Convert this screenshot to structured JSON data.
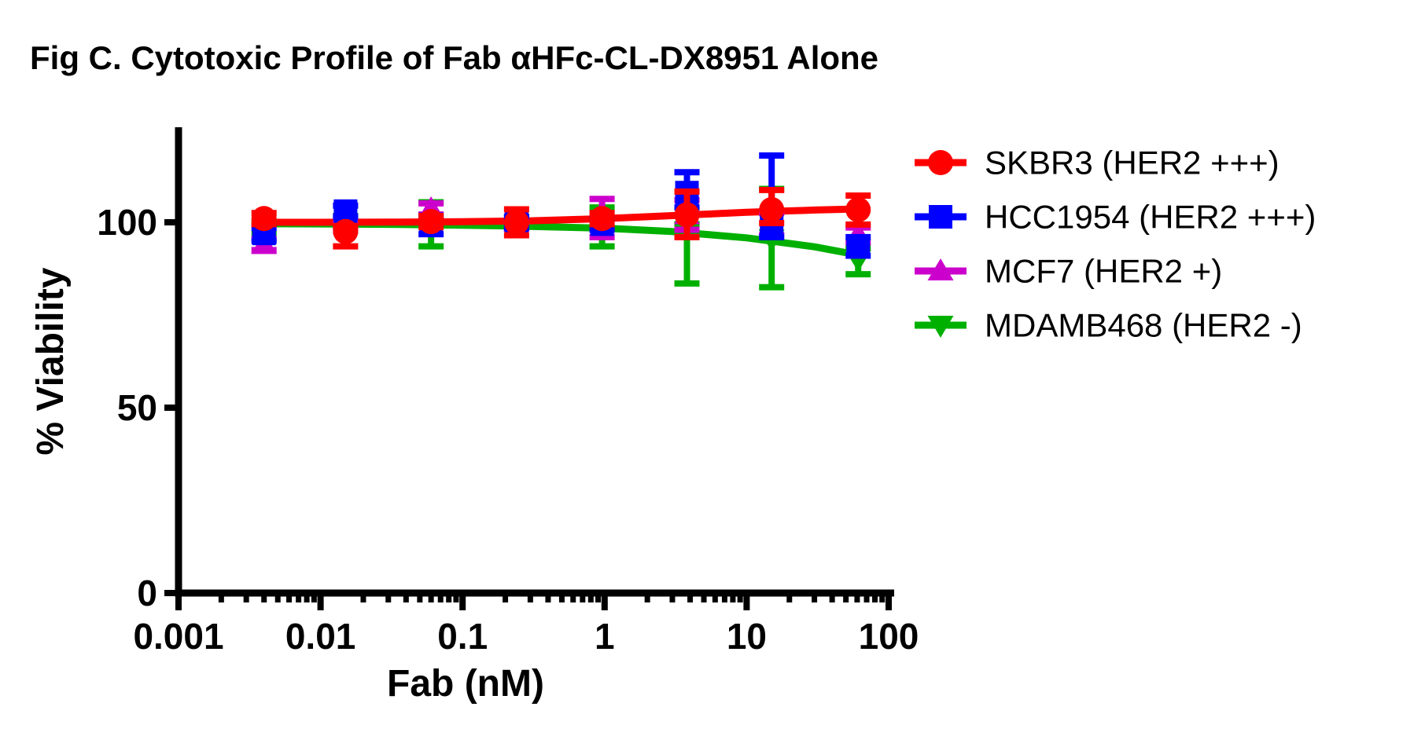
{
  "title": "Fig C. Cytotoxic Profile of Fab αHFc-CL-DX8951 Alone",
  "chart_data": {
    "type": "scatter",
    "x_scale": "log",
    "xlabel": "Fab (nM)",
    "ylabel": "% Viability",
    "xlim": [
      0.001,
      100
    ],
    "ylim": [
      0,
      125
    ],
    "grid": false,
    "legend_position": "right",
    "x_ticks": {
      "values": [
        0.001,
        0.01,
        0.1,
        1,
        10,
        100
      ],
      "labels": [
        "0.001",
        "0.01",
        "0.1",
        "1",
        "10",
        "100"
      ]
    },
    "y_ticks": {
      "values": [
        0,
        50,
        100
      ],
      "labels": [
        "0",
        "50",
        "100"
      ]
    },
    "x": [
      0.004,
      0.015,
      0.06,
      0.24,
      0.96,
      3.8,
      15,
      61
    ],
    "series": [
      {
        "name": "SKBR3 (HER2 +++)",
        "slug": "skbr3",
        "color": "#FF0000",
        "marker": "circle",
        "values": [
          101,
          97.5,
          100.2,
          100,
          101,
          102,
          103.4,
          103.4
        ],
        "err_plus": [
          1.5,
          1.5,
          1.5,
          3.5,
          1.5,
          6.3,
          5.3,
          3.8
        ],
        "err_minus": [
          1.5,
          4,
          1.5,
          3.5,
          1.5,
          6,
          3.6,
          4
        ],
        "fit_curve": {
          "x": [
            0.004,
            0.01,
            0.03,
            0.1,
            0.3,
            1,
            3,
            10,
            30,
            61
          ],
          "y": [
            100.0,
            100.0,
            100.05,
            100.15,
            100.4,
            101.0,
            101.8,
            102.7,
            103.3,
            103.6
          ]
        }
      },
      {
        "name": "HCC1954 (HER2 +++)",
        "slug": "hcc1954",
        "color": "#0000FF",
        "marker": "square",
        "values": [
          97,
          103,
          99.3,
          100,
          99.5,
          108,
          99,
          93.5
        ],
        "err_plus": [
          1.5,
          1.5,
          2.5,
          1.5,
          1.5,
          5.5,
          19,
          2.5
        ],
        "err_minus": [
          2,
          1.5,
          2.5,
          1.5,
          1.5,
          4,
          3,
          2.5
        ],
        "fit_curve": null
      },
      {
        "name": "MCF7 (HER2 +)",
        "slug": "mcf7",
        "color": "#CC00CC",
        "marker": "triangle-up",
        "values": [
          94,
          99.5,
          103.6,
          100,
          101,
          102,
          99.5,
          96.6
        ],
        "err_plus": [
          1.5,
          1,
          1.5,
          1,
          5.3,
          4,
          3,
          2
        ],
        "err_minus": [
          1.5,
          1,
          1.5,
          1,
          5,
          4,
          3,
          2
        ],
        "fit_curve": null
      },
      {
        "name": "MDAMB468 (HER2 -)",
        "slug": "mdamb468",
        "color": "#00B000",
        "marker": "triangle-down",
        "values": [
          98.5,
          100,
          99.5,
          99.5,
          98.5,
          97.5,
          95.5,
          90
        ],
        "err_plus": [
          1.5,
          1,
          5.9,
          1,
          5.5,
          2,
          13.5,
          3
        ],
        "err_minus": [
          1.5,
          1,
          6,
          1,
          5,
          14,
          13,
          4
        ],
        "fit_curve": {
          "x": [
            0.004,
            0.01,
            0.03,
            0.1,
            0.3,
            1,
            3,
            10,
            30,
            61
          ],
          "y": [
            99.6,
            99.55,
            99.45,
            99.2,
            98.9,
            98.4,
            97.5,
            95.8,
            93.4,
            91.2
          ]
        }
      }
    ]
  }
}
